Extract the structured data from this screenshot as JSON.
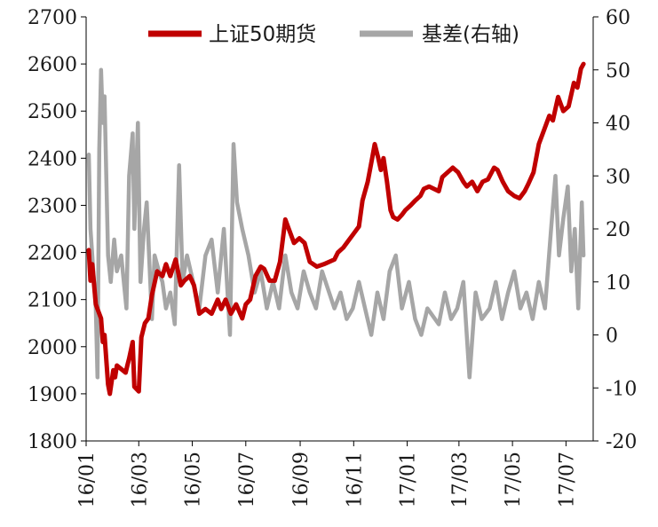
{
  "chart_data": {
    "type": "line",
    "title": "",
    "xlabel": "",
    "ylabel": "",
    "legend_position": "top",
    "grid": false,
    "x_ticks": [
      "16/01",
      "16/03",
      "16/05",
      "16/07",
      "16/09",
      "16/11",
      "17/01",
      "17/03",
      "17/05",
      "17/07"
    ],
    "y_left": {
      "ticks": [
        1800,
        1900,
        2000,
        2100,
        2200,
        2300,
        2400,
        2500,
        2600,
        2700
      ],
      "range": [
        1800,
        2700
      ]
    },
    "y_right": {
      "ticks": [
        -20,
        -10,
        0,
        10,
        20,
        30,
        40,
        50,
        60
      ],
      "range": [
        -20,
        60
      ]
    },
    "series": [
      {
        "name": "上证50期货",
        "axis": "left",
        "color": "#c00000",
        "points": [
          [
            "2016-01-04",
            2205
          ],
          [
            "2016-01-06",
            2140
          ],
          [
            "2016-01-08",
            2175
          ],
          [
            "2016-01-12",
            2090
          ],
          [
            "2016-01-14",
            2080
          ],
          [
            "2016-01-18",
            2060
          ],
          [
            "2016-01-20",
            2010
          ],
          [
            "2016-01-22",
            2025
          ],
          [
            "2016-01-26",
            1920
          ],
          [
            "2016-01-28",
            1900
          ],
          [
            "2016-02-01",
            1950
          ],
          [
            "2016-02-03",
            1935
          ],
          [
            "2016-02-05",
            1960
          ],
          [
            "2016-02-15",
            1945
          ],
          [
            "2016-02-17",
            1960
          ],
          [
            "2016-02-19",
            1975
          ],
          [
            "2016-02-23",
            2010
          ],
          [
            "2016-02-25",
            1915
          ],
          [
            "2016-03-01",
            1905
          ],
          [
            "2016-03-04",
            2020
          ],
          [
            "2016-03-08",
            2050
          ],
          [
            "2016-03-12",
            2060
          ],
          [
            "2016-03-16",
            2110
          ],
          [
            "2016-03-22",
            2160
          ],
          [
            "2016-03-28",
            2150
          ],
          [
            "2016-04-01",
            2175
          ],
          [
            "2016-04-06",
            2150
          ],
          [
            "2016-04-12",
            2185
          ],
          [
            "2016-04-18",
            2130
          ],
          [
            "2016-04-22",
            2140
          ],
          [
            "2016-04-28",
            2150
          ],
          [
            "2016-05-03",
            2130
          ],
          [
            "2016-05-09",
            2070
          ],
          [
            "2016-05-16",
            2080
          ],
          [
            "2016-05-23",
            2070
          ],
          [
            "2016-05-30",
            2100
          ],
          [
            "2016-06-03",
            2080
          ],
          [
            "2016-06-08",
            2100
          ],
          [
            "2016-06-14",
            2070
          ],
          [
            "2016-06-20",
            2090
          ],
          [
            "2016-06-27",
            2060
          ],
          [
            "2016-07-01",
            2090
          ],
          [
            "2016-07-06",
            2100
          ],
          [
            "2016-07-12",
            2150
          ],
          [
            "2016-07-18",
            2170
          ],
          [
            "2016-07-22",
            2165
          ],
          [
            "2016-07-28",
            2140
          ],
          [
            "2016-08-03",
            2140
          ],
          [
            "2016-08-09",
            2180
          ],
          [
            "2016-08-15",
            2270
          ],
          [
            "2016-08-19",
            2250
          ],
          [
            "2016-08-25",
            2220
          ],
          [
            "2016-08-31",
            2230
          ],
          [
            "2016-09-06",
            2220
          ],
          [
            "2016-09-12",
            2180
          ],
          [
            "2016-09-20",
            2170
          ],
          [
            "2016-09-28",
            2175
          ],
          [
            "2016-10-10",
            2185
          ],
          [
            "2016-10-14",
            2200
          ],
          [
            "2016-10-20",
            2210
          ],
          [
            "2016-10-26",
            2225
          ],
          [
            "2016-11-01",
            2240
          ],
          [
            "2016-11-07",
            2255
          ],
          [
            "2016-11-11",
            2310
          ],
          [
            "2016-11-17",
            2350
          ],
          [
            "2016-11-22",
            2400
          ],
          [
            "2016-11-25",
            2430
          ],
          [
            "2016-11-29",
            2400
          ],
          [
            "2016-12-02",
            2375
          ],
          [
            "2016-12-05",
            2400
          ],
          [
            "2016-12-09",
            2350
          ],
          [
            "2016-12-13",
            2290
          ],
          [
            "2016-12-16",
            2275
          ],
          [
            "2016-12-21",
            2270
          ],
          [
            "2016-12-26",
            2280
          ],
          [
            "2016-12-30",
            2290
          ],
          [
            "2017-01-05",
            2300
          ],
          [
            "2017-01-10",
            2310
          ],
          [
            "2017-01-16",
            2320
          ],
          [
            "2017-01-20",
            2335
          ],
          [
            "2017-01-26",
            2340
          ],
          [
            "2017-02-06",
            2330
          ],
          [
            "2017-02-10",
            2360
          ],
          [
            "2017-02-16",
            2370
          ],
          [
            "2017-02-22",
            2380
          ],
          [
            "2017-02-28",
            2370
          ],
          [
            "2017-03-06",
            2350
          ],
          [
            "2017-03-10",
            2340
          ],
          [
            "2017-03-16",
            2350
          ],
          [
            "2017-03-22",
            2330
          ],
          [
            "2017-03-28",
            2350
          ],
          [
            "2017-04-03",
            2355
          ],
          [
            "2017-04-10",
            2380
          ],
          [
            "2017-04-14",
            2375
          ],
          [
            "2017-04-20",
            2350
          ],
          [
            "2017-04-26",
            2330
          ],
          [
            "2017-05-03",
            2320
          ],
          [
            "2017-05-09",
            2315
          ],
          [
            "2017-05-15",
            2330
          ],
          [
            "2017-05-19",
            2345
          ],
          [
            "2017-05-25",
            2370
          ],
          [
            "2017-05-31",
            2430
          ],
          [
            "2017-06-06",
            2460
          ],
          [
            "2017-06-12",
            2490
          ],
          [
            "2017-06-16",
            2480
          ],
          [
            "2017-06-22",
            2530
          ],
          [
            "2017-06-28",
            2500
          ],
          [
            "2017-07-04",
            2510
          ],
          [
            "2017-07-10",
            2560
          ],
          [
            "2017-07-14",
            2550
          ],
          [
            "2017-07-18",
            2590
          ],
          [
            "2017-07-21",
            2600
          ]
        ]
      },
      {
        "name": "基差(右轴)",
        "axis": "right",
        "color": "#a6a6a6",
        "points": [
          [
            "2016-01-04",
            34
          ],
          [
            "2016-01-06",
            20
          ],
          [
            "2016-01-08",
            15
          ],
          [
            "2016-01-12",
            5
          ],
          [
            "2016-01-14",
            -8
          ],
          [
            "2016-01-16",
            35
          ],
          [
            "2016-01-18",
            50
          ],
          [
            "2016-01-20",
            40
          ],
          [
            "2016-01-22",
            45
          ],
          [
            "2016-01-26",
            15
          ],
          [
            "2016-01-29",
            10
          ],
          [
            "2016-02-02",
            18
          ],
          [
            "2016-02-05",
            12
          ],
          [
            "2016-02-10",
            15
          ],
          [
            "2016-02-16",
            5
          ],
          [
            "2016-02-19",
            30
          ],
          [
            "2016-02-23",
            38
          ],
          [
            "2016-02-25",
            20
          ],
          [
            "2016-02-29",
            40
          ],
          [
            "2016-03-03",
            10
          ],
          [
            "2016-03-07",
            20
          ],
          [
            "2016-03-10",
            25
          ],
          [
            "2016-03-16",
            3
          ],
          [
            "2016-03-19",
            15
          ],
          [
            "2016-03-24",
            12
          ],
          [
            "2016-03-28",
            10
          ],
          [
            "2016-04-01",
            5
          ],
          [
            "2016-04-06",
            8
          ],
          [
            "2016-04-11",
            2
          ],
          [
            "2016-04-16",
            32
          ],
          [
            "2016-04-20",
            10
          ],
          [
            "2016-04-25",
            15
          ],
          [
            "2016-05-02",
            10
          ],
          [
            "2016-05-09",
            5
          ],
          [
            "2016-05-16",
            15
          ],
          [
            "2016-05-23",
            18
          ],
          [
            "2016-05-30",
            8
          ],
          [
            "2016-06-06",
            20
          ],
          [
            "2016-06-13",
            0
          ],
          [
            "2016-06-17",
            36
          ],
          [
            "2016-06-21",
            25
          ],
          [
            "2016-06-27",
            20
          ],
          [
            "2016-07-04",
            15
          ],
          [
            "2016-07-11",
            8
          ],
          [
            "2016-07-18",
            12
          ],
          [
            "2016-07-25",
            5
          ],
          [
            "2016-08-01",
            10
          ],
          [
            "2016-08-08",
            5
          ],
          [
            "2016-08-15",
            15
          ],
          [
            "2016-08-22",
            8
          ],
          [
            "2016-08-29",
            5
          ],
          [
            "2016-09-05",
            12
          ],
          [
            "2016-09-12",
            8
          ],
          [
            "2016-09-19",
            5
          ],
          [
            "2016-09-26",
            12
          ],
          [
            "2016-10-10",
            5
          ],
          [
            "2016-10-17",
            8
          ],
          [
            "2016-10-24",
            3
          ],
          [
            "2016-10-31",
            5
          ],
          [
            "2016-11-07",
            10
          ],
          [
            "2016-11-14",
            5
          ],
          [
            "2016-11-21",
            0
          ],
          [
            "2016-11-28",
            8
          ],
          [
            "2016-12-05",
            3
          ],
          [
            "2016-12-12",
            12
          ],
          [
            "2016-12-19",
            15
          ],
          [
            "2016-12-26",
            5
          ],
          [
            "2017-01-03",
            10
          ],
          [
            "2017-01-10",
            3
          ],
          [
            "2017-01-17",
            0
          ],
          [
            "2017-01-24",
            5
          ],
          [
            "2017-02-06",
            2
          ],
          [
            "2017-02-13",
            8
          ],
          [
            "2017-02-20",
            3
          ],
          [
            "2017-02-27",
            5
          ],
          [
            "2017-03-06",
            10
          ],
          [
            "2017-03-13",
            -8
          ],
          [
            "2017-03-20",
            8
          ],
          [
            "2017-03-27",
            3
          ],
          [
            "2017-04-05",
            5
          ],
          [
            "2017-04-12",
            10
          ],
          [
            "2017-04-19",
            3
          ],
          [
            "2017-04-26",
            8
          ],
          [
            "2017-05-03",
            12
          ],
          [
            "2017-05-10",
            5
          ],
          [
            "2017-05-17",
            8
          ],
          [
            "2017-05-24",
            3
          ],
          [
            "2017-05-31",
            10
          ],
          [
            "2017-06-07",
            5
          ],
          [
            "2017-06-14",
            20
          ],
          [
            "2017-06-19",
            30
          ],
          [
            "2017-06-23",
            15
          ],
          [
            "2017-06-28",
            22
          ],
          [
            "2017-07-03",
            28
          ],
          [
            "2017-07-07",
            12
          ],
          [
            "2017-07-11",
            20
          ],
          [
            "2017-07-15",
            5
          ],
          [
            "2017-07-19",
            25
          ],
          [
            "2017-07-21",
            15
          ]
        ]
      }
    ]
  }
}
